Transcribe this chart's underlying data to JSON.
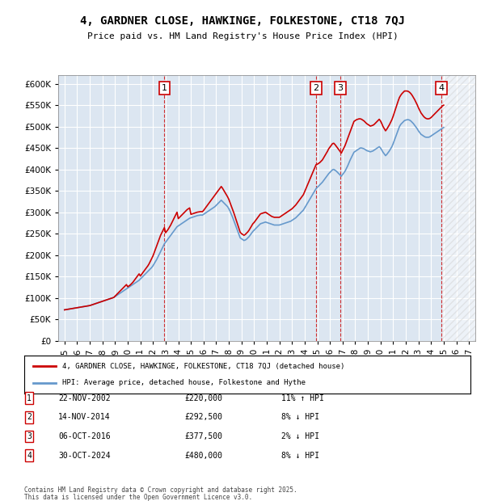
{
  "title": "4, GARDNER CLOSE, HAWKINGE, FOLKESTONE, CT18 7QJ",
  "subtitle": "Price paid vs. HM Land Registry's House Price Index (HPI)",
  "ylabel_ticks": [
    "£0",
    "£50K",
    "£100K",
    "£150K",
    "£200K",
    "£250K",
    "£300K",
    "£350K",
    "£400K",
    "£450K",
    "£500K",
    "£550K",
    "£600K"
  ],
  "ytick_values": [
    0,
    50000,
    100000,
    150000,
    200000,
    250000,
    300000,
    350000,
    400000,
    450000,
    500000,
    550000,
    600000
  ],
  "ylim": [
    0,
    620000
  ],
  "xlim_start": 1994.5,
  "xlim_end": 2027.5,
  "transactions": [
    {
      "num": 1,
      "date": "22-NOV-2002",
      "price": 220000,
      "pct": "11%",
      "dir": "↑",
      "x_year": 2002.9
    },
    {
      "num": 2,
      "date": "14-NOV-2014",
      "price": 292500,
      "pct": "8%",
      "dir": "↓",
      "x_year": 2014.9
    },
    {
      "num": 3,
      "date": "06-OCT-2016",
      "price": 377500,
      "pct": "2%",
      "dir": "↓",
      "x_year": 2016.8
    },
    {
      "num": 4,
      "date": "30-OCT-2024",
      "price": 480000,
      "pct": "8%",
      "dir": "↓",
      "x_year": 2024.8
    }
  ],
  "legend_line1": "4, GARDNER CLOSE, HAWKINGE, FOLKESTONE, CT18 7QJ (detached house)",
  "legend_line2": "HPI: Average price, detached house, Folkestone and Hythe",
  "footer1": "Contains HM Land Registry data © Crown copyright and database right 2025.",
  "footer2": "This data is licensed under the Open Government Licence v3.0.",
  "line_color_red": "#cc0000",
  "line_color_blue": "#6699cc",
  "background_color": "#dce6f1",
  "plot_bg": "#dce6f1",
  "hpi_data": {
    "years": [
      1995.0,
      1995.1,
      1995.2,
      1995.3,
      1995.4,
      1995.5,
      1995.6,
      1995.7,
      1995.8,
      1995.9,
      1996.0,
      1996.1,
      1996.2,
      1996.3,
      1996.4,
      1996.5,
      1996.6,
      1996.7,
      1996.8,
      1996.9,
      1997.0,
      1997.1,
      1997.2,
      1997.3,
      1997.4,
      1997.5,
      1997.6,
      1997.7,
      1997.8,
      1997.9,
      1998.0,
      1998.1,
      1998.2,
      1998.3,
      1998.4,
      1998.5,
      1998.6,
      1998.7,
      1998.8,
      1998.9,
      1999.0,
      1999.1,
      1999.2,
      1999.3,
      1999.4,
      1999.5,
      1999.6,
      1999.7,
      1999.8,
      1999.9,
      2000.0,
      2000.1,
      2000.2,
      2000.3,
      2000.4,
      2000.5,
      2000.6,
      2000.7,
      2000.8,
      2000.9,
      2001.0,
      2001.1,
      2001.2,
      2001.3,
      2001.4,
      2001.5,
      2001.6,
      2001.7,
      2001.8,
      2001.9,
      2002.0,
      2002.1,
      2002.2,
      2002.3,
      2002.4,
      2002.5,
      2002.6,
      2002.7,
      2002.8,
      2002.9,
      2003.0,
      2003.1,
      2003.2,
      2003.3,
      2003.4,
      2003.5,
      2003.6,
      2003.7,
      2003.8,
      2003.9,
      2004.0,
      2004.1,
      2004.2,
      2004.3,
      2004.4,
      2004.5,
      2004.6,
      2004.7,
      2004.8,
      2004.9,
      2005.0,
      2005.1,
      2005.2,
      2005.3,
      2005.4,
      2005.5,
      2005.6,
      2005.7,
      2005.8,
      2005.9,
      2006.0,
      2006.1,
      2006.2,
      2006.3,
      2006.4,
      2006.5,
      2006.6,
      2006.7,
      2006.8,
      2006.9,
      2007.0,
      2007.1,
      2007.2,
      2007.3,
      2007.4,
      2007.5,
      2007.6,
      2007.7,
      2007.8,
      2007.9,
      2008.0,
      2008.1,
      2008.2,
      2008.3,
      2008.4,
      2008.5,
      2008.6,
      2008.7,
      2008.8,
      2008.9,
      2009.0,
      2009.1,
      2009.2,
      2009.3,
      2009.4,
      2009.5,
      2009.6,
      2009.7,
      2009.8,
      2009.9,
      2010.0,
      2010.1,
      2010.2,
      2010.3,
      2010.4,
      2010.5,
      2010.6,
      2010.7,
      2010.8,
      2010.9,
      2011.0,
      2011.1,
      2011.2,
      2011.3,
      2011.4,
      2011.5,
      2011.6,
      2011.7,
      2011.8,
      2011.9,
      2012.0,
      2012.1,
      2012.2,
      2012.3,
      2012.4,
      2012.5,
      2012.6,
      2012.7,
      2012.8,
      2012.9,
      2013.0,
      2013.1,
      2013.2,
      2013.3,
      2013.4,
      2013.5,
      2013.6,
      2013.7,
      2013.8,
      2013.9,
      2014.0,
      2014.1,
      2014.2,
      2014.3,
      2014.4,
      2014.5,
      2014.6,
      2014.7,
      2014.8,
      2014.9,
      2015.0,
      2015.1,
      2015.2,
      2015.3,
      2015.4,
      2015.5,
      2015.6,
      2015.7,
      2015.8,
      2015.9,
      2016.0,
      2016.1,
      2016.2,
      2016.3,
      2016.4,
      2016.5,
      2016.6,
      2016.7,
      2016.8,
      2016.9,
      2017.0,
      2017.1,
      2017.2,
      2017.3,
      2017.4,
      2017.5,
      2017.6,
      2017.7,
      2017.8,
      2017.9,
      2018.0,
      2018.1,
      2018.2,
      2018.3,
      2018.4,
      2018.5,
      2018.6,
      2018.7,
      2018.8,
      2018.9,
      2019.0,
      2019.1,
      2019.2,
      2019.3,
      2019.4,
      2019.5,
      2019.6,
      2019.7,
      2019.8,
      2019.9,
      2020.0,
      2020.1,
      2020.2,
      2020.3,
      2020.4,
      2020.5,
      2020.6,
      2020.7,
      2020.8,
      2020.9,
      2021.0,
      2021.1,
      2021.2,
      2021.3,
      2021.4,
      2021.5,
      2021.6,
      2021.7,
      2021.8,
      2021.9,
      2022.0,
      2022.1,
      2022.2,
      2022.3,
      2022.4,
      2022.5,
      2022.6,
      2022.7,
      2022.8,
      2022.9,
      2023.0,
      2023.1,
      2023.2,
      2023.3,
      2023.4,
      2023.5,
      2023.6,
      2023.7,
      2023.8,
      2023.9,
      2024.0,
      2024.1,
      2024.2,
      2024.3,
      2024.4,
      2024.5,
      2024.6,
      2024.7,
      2024.8,
      2024.9,
      2025.0
    ],
    "hpi_values": [
      72000,
      72500,
      73000,
      73500,
      74000,
      74500,
      75000,
      75500,
      76000,
      76500,
      77000,
      77500,
      78000,
      78500,
      79000,
      79500,
      80000,
      80500,
      81000,
      81500,
      82000,
      83000,
      84000,
      85000,
      86000,
      87000,
      88000,
      89000,
      90000,
      91000,
      92000,
      93000,
      94000,
      95000,
      96000,
      97000,
      98000,
      99000,
      100000,
      101000,
      103000,
      105000,
      107000,
      109000,
      111000,
      113000,
      115000,
      117000,
      119000,
      121000,
      123000,
      125000,
      127000,
      129000,
      131000,
      133000,
      135000,
      137000,
      139000,
      141000,
      144000,
      147000,
      150000,
      153000,
      156000,
      159000,
      162000,
      165000,
      168000,
      171000,
      175000,
      180000,
      185000,
      190000,
      196000,
      202000,
      208000,
      214000,
      220000,
      226000,
      230000,
      234000,
      238000,
      242000,
      246000,
      250000,
      254000,
      258000,
      262000,
      266000,
      268000,
      270000,
      272000,
      274000,
      276000,
      278000,
      280000,
      282000,
      284000,
      286000,
      287000,
      288000,
      289000,
      290000,
      291000,
      292000,
      292500,
      293000,
      293500,
      293000,
      295000,
      297000,
      299000,
      301000,
      303000,
      305000,
      307000,
      309000,
      311000,
      313000,
      316000,
      319000,
      322000,
      325000,
      328000,
      325000,
      322000,
      319000,
      316000,
      313000,
      308000,
      302000,
      295000,
      288000,
      280000,
      272000,
      264000,
      256000,
      248000,
      240000,
      238000,
      236000,
      234000,
      235000,
      237000,
      240000,
      243000,
      247000,
      251000,
      255000,
      258000,
      261000,
      264000,
      267000,
      270000,
      273000,
      274000,
      275000,
      276000,
      277000,
      276000,
      275000,
      274000,
      273000,
      272000,
      271000,
      270000,
      270000,
      270000,
      270000,
      270000,
      271000,
      272000,
      273000,
      274000,
      275000,
      276000,
      277000,
      278000,
      279000,
      281000,
      283000,
      285000,
      287000,
      290000,
      293000,
      296000,
      299000,
      302000,
      305000,
      310000,
      315000,
      320000,
      325000,
      330000,
      335000,
      340000,
      345000,
      350000,
      355000,
      358000,
      361000,
      364000,
      367000,
      370000,
      374000,
      378000,
      382000,
      386000,
      390000,
      393000,
      396000,
      399000,
      400000,
      398000,
      396000,
      393000,
      390000,
      387000,
      384000,
      388000,
      392000,
      396000,
      402000,
      408000,
      415000,
      422000,
      428000,
      434000,
      440000,
      442000,
      444000,
      446000,
      448000,
      450000,
      450000,
      449000,
      448000,
      446000,
      444000,
      443000,
      442000,
      441000,
      442000,
      443000,
      445000,
      447000,
      449000,
      451000,
      453000,
      450000,
      445000,
      440000,
      436000,
      432000,
      435000,
      439000,
      443000,
      448000,
      453000,
      460000,
      468000,
      476000,
      484000,
      492000,
      500000,
      505000,
      508000,
      511000,
      514000,
      515000,
      516000,
      516000,
      515000,
      513000,
      510000,
      507000,
      503000,
      499000,
      495000,
      490000,
      486000,
      482000,
      480000,
      478000,
      476000,
      475000,
      475000,
      475000,
      476000,
      478000,
      480000,
      482000,
      484000,
      486000,
      488000,
      490000,
      492000,
      494000,
      496000,
      498000
    ],
    "price_paid_values": [
      72000,
      72500,
      73000,
      73500,
      74000,
      74500,
      75000,
      75500,
      76000,
      76500,
      77000,
      77500,
      78000,
      78500,
      79000,
      79500,
      80000,
      80500,
      81000,
      81500,
      82000,
      83000,
      84000,
      85000,
      86000,
      87000,
      88000,
      89000,
      90000,
      91000,
      92000,
      93000,
      94000,
      95000,
      96000,
      97000,
      98000,
      99000,
      100000,
      101000,
      104000,
      107000,
      110000,
      113000,
      116000,
      119000,
      122000,
      125000,
      128000,
      131000,
      126000,
      128000,
      130000,
      133000,
      136000,
      140000,
      144000,
      148000,
      152000,
      156000,
      151000,
      155000,
      159000,
      163000,
      167000,
      171000,
      175000,
      180000,
      186000,
      192000,
      198000,
      206000,
      214000,
      222000,
      230000,
      238000,
      246000,
      252000,
      258000,
      264000,
      252000,
      256000,
      260000,
      265000,
      270000,
      276000,
      282000,
      288000,
      294000,
      300000,
      285000,
      288000,
      291000,
      294000,
      297000,
      300000,
      303000,
      306000,
      308000,
      310000,
      295000,
      296000,
      297000,
      298000,
      299000,
      300000,
      300500,
      301000,
      301500,
      301000,
      304000,
      308000,
      312000,
      316000,
      320000,
      324000,
      328000,
      332000,
      336000,
      340000,
      344000,
      348000,
      352000,
      356000,
      360000,
      356000,
      351000,
      346000,
      341000,
      336000,
      330000,
      322000,
      314000,
      306000,
      298000,
      289000,
      280000,
      271000,
      262000,
      253000,
      250000,
      248000,
      246000,
      248000,
      251000,
      254000,
      258000,
      263000,
      268000,
      273000,
      276000,
      280000,
      284000,
      288000,
      292000,
      296000,
      297000,
      298000,
      299000,
      300000,
      298000,
      296000,
      294000,
      292000,
      290000,
      289000,
      288000,
      288000,
      288000,
      288000,
      288000,
      290000,
      292000,
      294000,
      296000,
      298000,
      300000,
      302000,
      304000,
      306000,
      308000,
      311000,
      314000,
      317000,
      321000,
      325000,
      329000,
      333000,
      337000,
      341000,
      348000,
      355000,
      362000,
      369000,
      376000,
      383000,
      390000,
      397000,
      404000,
      411000,
      412000,
      414000,
      416000,
      419000,
      422000,
      427000,
      432000,
      437000,
      442000,
      448000,
      452000,
      456000,
      460000,
      461000,
      458000,
      454000,
      450000,
      446000,
      442000,
      438000,
      444000,
      450000,
      456000,
      464000,
      472000,
      480000,
      488000,
      496000,
      504000,
      512000,
      514000,
      516000,
      517000,
      518000,
      518000,
      517000,
      515000,
      513000,
      510000,
      507000,
      505000,
      503000,
      501000,
      502000,
      503000,
      505000,
      508000,
      511000,
      514000,
      517000,
      513000,
      507000,
      500000,
      495000,
      490000,
      494000,
      499000,
      504000,
      510000,
      516000,
      524000,
      533000,
      542000,
      551000,
      560000,
      568000,
      573000,
      577000,
      580000,
      583000,
      583000,
      583000,
      582000,
      580000,
      577000,
      573000,
      568000,
      563000,
      557000,
      551000,
      544000,
      538000,
      532000,
      528000,
      524000,
      521000,
      519000,
      518000,
      518000,
      519000,
      521000,
      524000,
      527000,
      530000,
      533000,
      536000,
      539000,
      542000,
      545000,
      548000,
      550000
    ]
  }
}
